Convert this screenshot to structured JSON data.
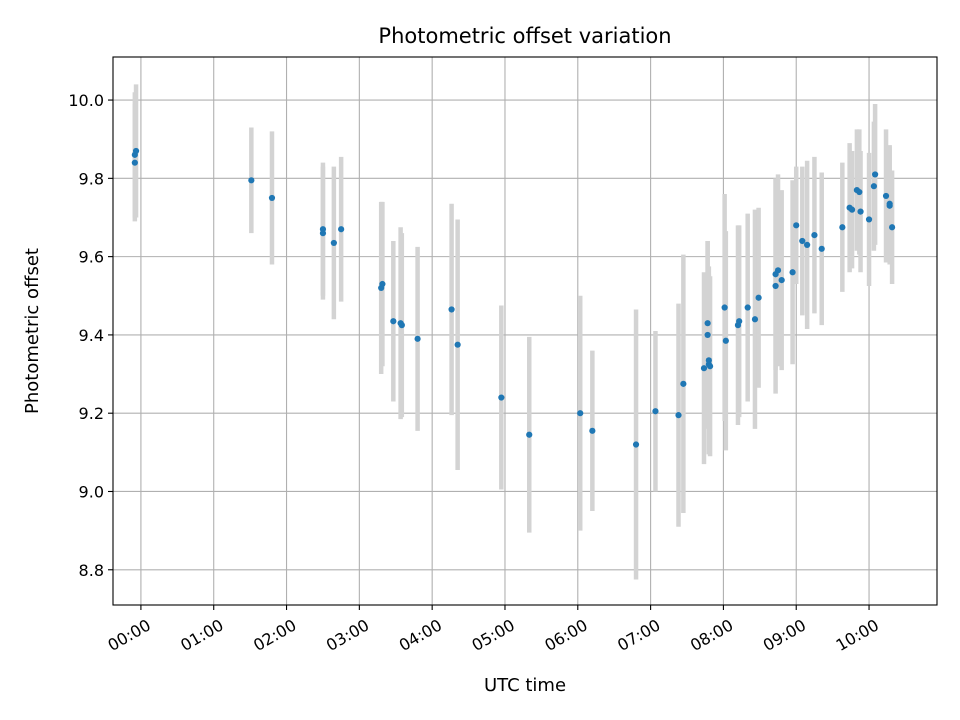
{
  "chart_data": {
    "type": "scatter",
    "title": "Photometric offset variation",
    "xlabel": "UTC time",
    "ylabel": "Photometric offset",
    "xlim": [
      "23:37",
      "10:56"
    ],
    "ylim": [
      8.71,
      10.11
    ],
    "x_ticks": [
      "00:00",
      "01:00",
      "02:00",
      "03:00",
      "04:00",
      "05:00",
      "06:00",
      "07:00",
      "08:00",
      "09:00",
      "10:00"
    ],
    "y_ticks": [
      8.8,
      9.0,
      9.2,
      9.4,
      9.6,
      9.8,
      10.0
    ],
    "grid": true,
    "colors": {
      "point": "#1f77b4",
      "errorbar": "#d3d3d3",
      "grid": "#b0b0b0"
    },
    "series": [
      {
        "x": [
          "23:55",
          "23:55",
          "23:56",
          "01:31",
          "01:48",
          "02:30",
          "02:30",
          "02:39",
          "02:45",
          "03:18",
          "03:19",
          "03:28",
          "03:34",
          "03:35",
          "03:48",
          "04:16",
          "04:21",
          "04:57",
          "05:20",
          "06:02",
          "06:12",
          "06:48",
          "07:04",
          "07:23",
          "07:27",
          "07:44",
          "07:47",
          "07:47",
          "07:48",
          "07:48",
          "07:49",
          "08:01",
          "08:02",
          "08:12",
          "08:13",
          "08:20",
          "08:26",
          "08:29",
          "08:43",
          "08:43",
          "08:45",
          "08:48",
          "08:57",
          "09:00",
          "09:05",
          "09:09",
          "09:15",
          "09:21",
          "09:38",
          "09:44",
          "09:46",
          "09:50",
          "09:52",
          "09:53",
          "10:00",
          "10:04",
          "10:05",
          "10:14",
          "10:17",
          "10:17",
          "10:19"
        ],
        "y": [
          9.84,
          9.86,
          9.87,
          9.795,
          9.75,
          9.66,
          9.67,
          9.635,
          9.67,
          9.52,
          9.53,
          9.435,
          9.43,
          9.425,
          9.39,
          9.465,
          9.375,
          9.24,
          9.145,
          9.2,
          9.155,
          9.12,
          9.205,
          9.195,
          9.275,
          9.315,
          9.43,
          9.4,
          9.335,
          9.325,
          9.32,
          9.47,
          9.385,
          9.425,
          9.435,
          9.47,
          9.44,
          9.495,
          9.525,
          9.555,
          9.565,
          9.54,
          9.56,
          9.68,
          9.64,
          9.63,
          9.655,
          9.62,
          9.675,
          9.725,
          9.72,
          9.77,
          9.765,
          9.715,
          9.695,
          9.78,
          9.81,
          9.755,
          9.735,
          9.73,
          9.675
        ],
        "yerr": [
          0.15,
          0.16,
          0.17,
          0.135,
          0.17,
          0.17,
          0.17,
          0.195,
          0.185,
          0.22,
          0.21,
          0.205,
          0.245,
          0.235,
          0.235,
          0.27,
          0.32,
          0.235,
          0.25,
          0.3,
          0.205,
          0.345,
          0.205,
          0.285,
          0.33,
          0.245,
          0.21,
          0.24,
          0.24,
          0.23,
          0.23,
          0.29,
          0.28,
          0.255,
          0.245,
          0.24,
          0.28,
          0.23,
          0.275,
          0.245,
          0.245,
          0.23,
          0.235,
          0.15,
          0.19,
          0.215,
          0.2,
          0.195,
          0.165,
          0.165,
          0.15,
          0.155,
          0.16,
          0.155,
          0.17,
          0.165,
          0.18,
          0.17,
          0.15,
          0.15,
          0.145
        ]
      }
    ]
  }
}
